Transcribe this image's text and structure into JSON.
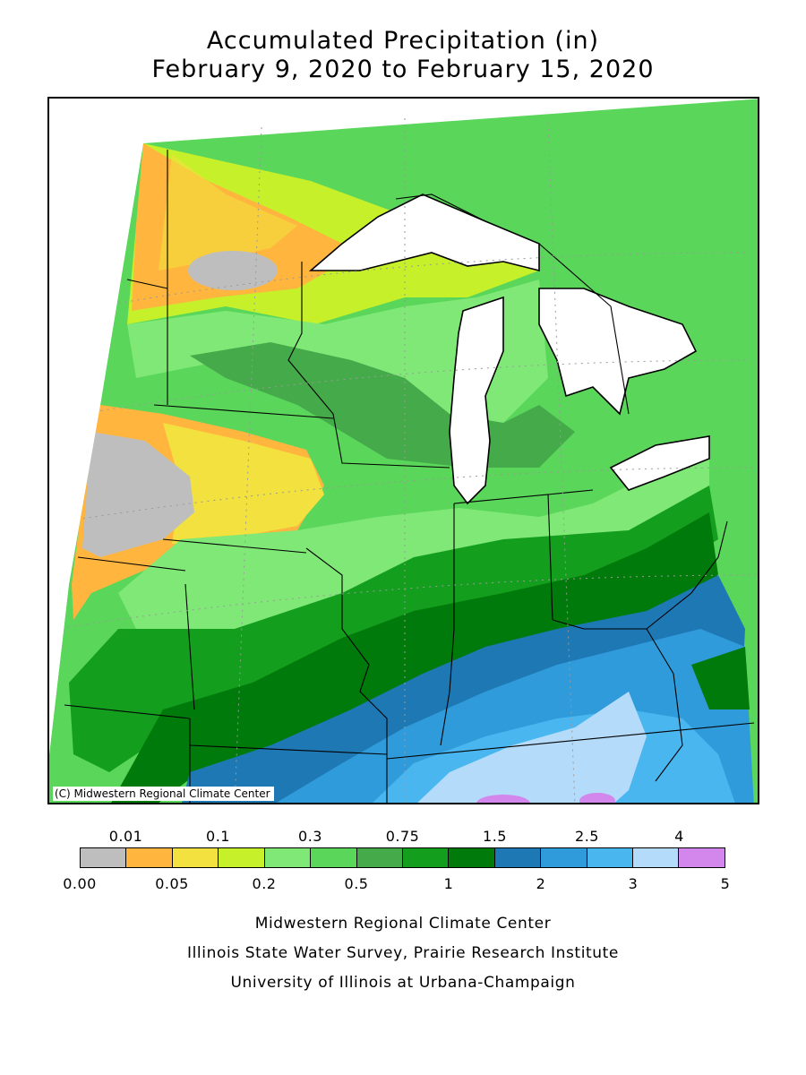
{
  "title": {
    "line1": "Accumulated Precipitation (in)",
    "line2": "February 9, 2020 to February 15, 2020"
  },
  "map": {
    "copyright": "(C) Midwestern Regional Climate Center",
    "features": [
      "precipitation-shading",
      "state-borders",
      "great-lakes",
      "graticule"
    ]
  },
  "legend": {
    "colors": [
      "#bebebe",
      "#ffb53e",
      "#f2e13e",
      "#c6f02a",
      "#7fe876",
      "#5ad65a",
      "#45aa4a",
      "#149e1e",
      "#007a0a",
      "#1e78b4",
      "#309bda",
      "#4ab6f0",
      "#b4dcfa",
      "#d386ec"
    ],
    "labels_top": [
      "0.01",
      "0.1",
      "0.3",
      "0.75",
      "1.5",
      "2.5",
      "4"
    ],
    "labels_bottom": [
      "0.00",
      "0.05",
      "0.2",
      "0.5",
      "1",
      "2",
      "3",
      "5"
    ]
  },
  "credits": {
    "line1": "Midwestern Regional Climate Center",
    "line2": "Illinois State Water Survey, Prairie Research Institute",
    "line3": "University of Illinois at Urbana-Champaign"
  }
}
